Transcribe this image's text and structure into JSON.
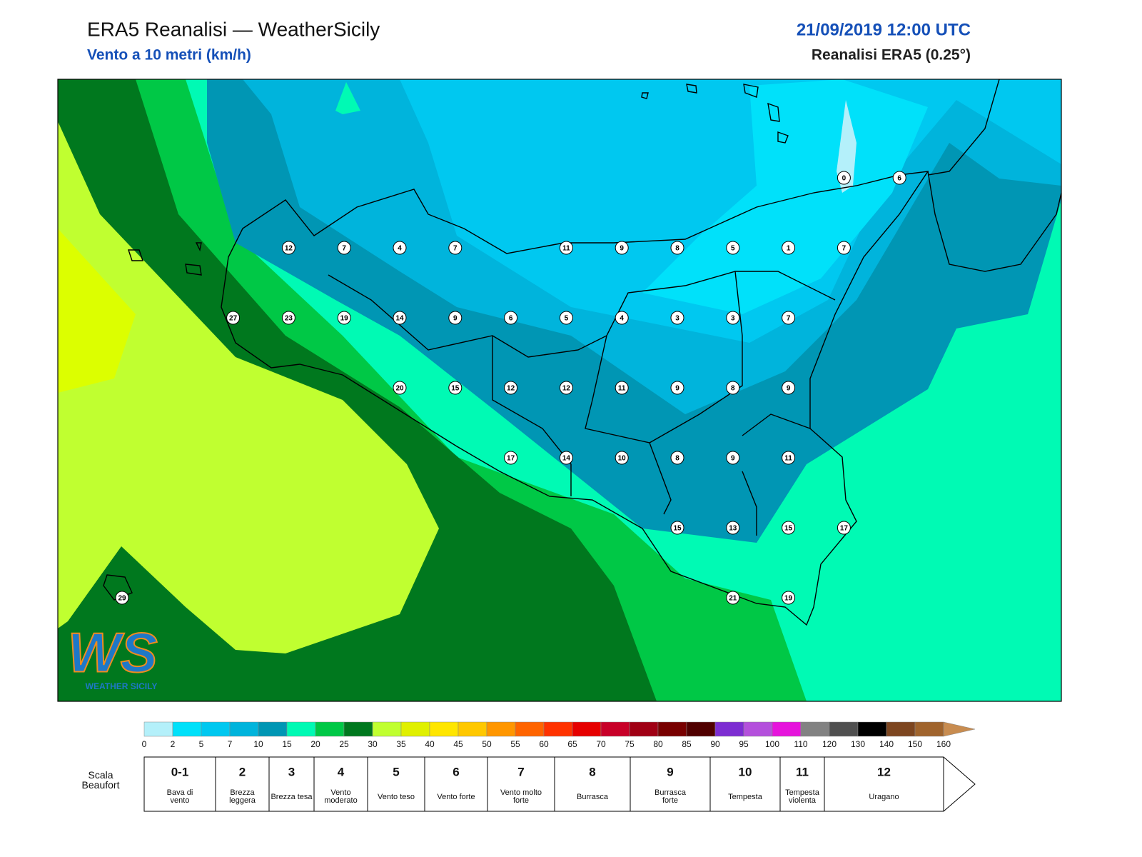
{
  "header": {
    "title": "ERA5 Reanalisi — WeatherSicily",
    "subtitle": "Vento a 10 metri (km/h)",
    "datetime": "21/09/2019 12:00 UTC",
    "source": "Reanalisi ERA5 (0.25°)"
  },
  "stations": {
    "rows": [
      [
        null,
        null,
        null,
        null,
        null,
        null,
        null,
        null,
        null,
        null,
        null,
        null,
        null,
        0,
        6
      ],
      [
        null,
        null,
        null,
        12,
        7,
        4,
        7,
        null,
        11,
        9,
        8,
        5,
        1,
        7,
        null
      ],
      [
        null,
        null,
        27,
        23,
        19,
        14,
        9,
        6,
        5,
        4,
        3,
        3,
        7,
        null,
        null
      ],
      [
        null,
        null,
        null,
        null,
        null,
        20,
        15,
        12,
        12,
        11,
        9,
        8,
        9,
        null,
        null
      ],
      [
        null,
        null,
        null,
        null,
        null,
        null,
        null,
        17,
        14,
        10,
        8,
        9,
        11,
        null,
        null
      ],
      [
        null,
        null,
        null,
        null,
        null,
        null,
        null,
        null,
        null,
        null,
        15,
        13,
        15,
        17,
        null
      ],
      [
        29,
        null,
        null,
        null,
        null,
        null,
        null,
        null,
        null,
        null,
        null,
        21,
        19,
        null,
        null
      ]
    ]
  },
  "colorbar": {
    "levels": [
      0,
      2,
      5,
      7,
      10,
      15,
      20,
      25,
      30,
      35,
      40,
      45,
      50,
      55,
      60,
      65,
      70,
      75,
      80,
      85,
      90,
      95,
      100,
      110,
      120,
      130,
      140,
      150,
      160
    ],
    "colors": [
      "#b4f0fa",
      "#00e1fa",
      "#00c8f0",
      "#00b4dc",
      "#0096b4",
      "#00fab4",
      "#00c846",
      "#00781e",
      "#c0ff30",
      "#e0f000",
      "#ffe600",
      "#ffc800",
      "#ff9600",
      "#ff6400",
      "#ff3200",
      "#e60000",
      "#c80028",
      "#a00014",
      "#780000",
      "#500000",
      "#7d2dd2",
      "#b450dc",
      "#e614dc",
      "#828282",
      "#505050",
      "#000000",
      "#7d4620",
      "#a0642d",
      "#c88c50"
    ]
  },
  "beaufort": {
    "label": "Scala Beaufort",
    "classes": [
      {
        "force": "0-1",
        "label": "Bava di vento"
      },
      {
        "force": 2,
        "label": "Brezza leggera"
      },
      {
        "force": 3,
        "label": "Brezza tesa"
      },
      {
        "force": 4,
        "label": "Vento moderato"
      },
      {
        "force": 5,
        "label": "Vento teso"
      },
      {
        "force": 6,
        "label": "Vento forte"
      },
      {
        "force": 7,
        "label": "Vento molto forte"
      },
      {
        "force": 8,
        "label": "Burrasca"
      },
      {
        "force": 9,
        "label": "Burrasca forte"
      },
      {
        "force": 10,
        "label": "Tempesta"
      },
      {
        "force": 11,
        "label": "Tempesta violenta"
      },
      {
        "force": 12,
        "label": "Uragano"
      }
    ]
  },
  "logo": {
    "text": "WS",
    "caption": "WEATHER SICILY"
  }
}
